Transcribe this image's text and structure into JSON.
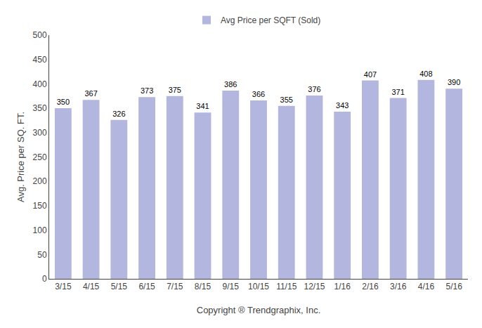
{
  "chart_data": {
    "type": "bar",
    "categories": [
      "3/15",
      "4/15",
      "5/15",
      "6/15",
      "7/15",
      "8/15",
      "9/15",
      "10/15",
      "11/15",
      "12/15",
      "1/16",
      "2/16",
      "3/16",
      "4/16",
      "5/16"
    ],
    "series": [
      {
        "name": "Avg Price per SQFT (Sold)",
        "color": "#b3b7e0",
        "values": [
          350,
          367,
          326,
          373,
          375,
          341,
          386,
          366,
          355,
          376,
          343,
          407,
          371,
          408,
          390
        ]
      }
    ],
    "ylabel": "Avg. Price per SQ. FT.",
    "xlabel": "Copyright ® Trendgraphix, Inc.",
    "ylim": [
      0,
      500
    ],
    "yticks": [
      0,
      50,
      100,
      150,
      200,
      250,
      300,
      350,
      400,
      450,
      500
    ],
    "grid": false,
    "legend": "upper center",
    "data_labels": true
  }
}
